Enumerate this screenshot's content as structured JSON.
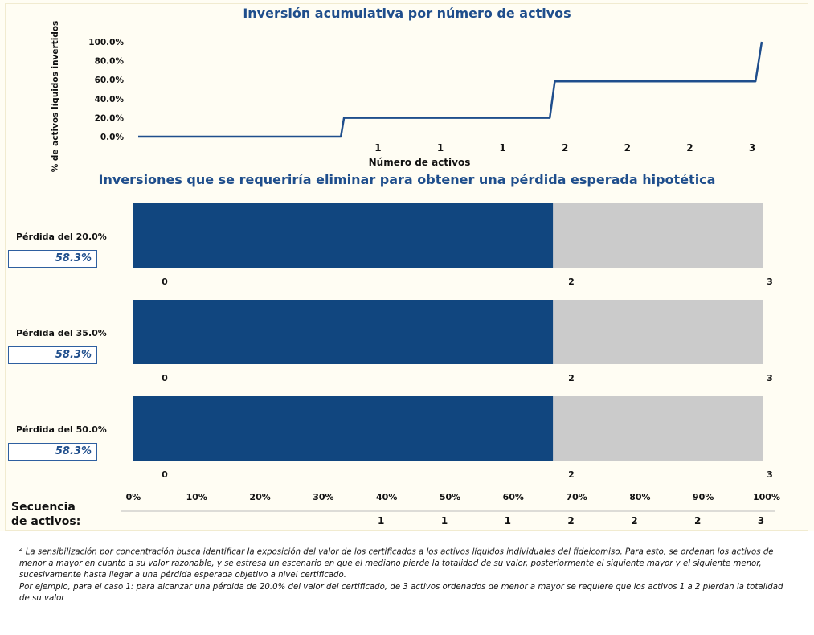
{
  "chart_data": [
    {
      "type": "line",
      "title": "Inversión acumulativa por número de activos",
      "xlabel": "Número de activos",
      "ylabel": "% de activos líquidos invertidos",
      "yticks": [
        "100.0%",
        "80.0%",
        "60.0%",
        "40.0%",
        "20.0%",
        "0.0%"
      ],
      "ylim": [
        0,
        100
      ],
      "xlim": [
        0,
        100
      ],
      "x_tick_labels": [
        "1",
        "1",
        "1",
        "2",
        "2",
        "2",
        "3"
      ],
      "x_tick_positions": [
        40,
        50,
        60,
        70,
        80,
        90,
        100
      ],
      "series": [
        {
          "x": [
            0,
            32.5,
            33,
            66,
            66.8,
            99,
            100
          ],
          "y": [
            0,
            0,
            19.8,
            19.8,
            58.3,
            58.3,
            100
          ]
        }
      ],
      "grid": false
    },
    {
      "type": "bar",
      "orientation": "horizontal",
      "stacked": true,
      "title": "Inversiones que se requeriría eliminar para obtener una pérdida esperada hipotética",
      "categories": [
        "Pérdida del 20.0%",
        "Pérdida del 35.0%",
        "Pérdida del 50.0%"
      ],
      "values": [
        58.3,
        58.3,
        58.3
      ],
      "value_labels": [
        "58.3%",
        "58.3%",
        "58.3%"
      ],
      "bar_split": 66.7,
      "bar_ticks": [
        {
          "label": "0",
          "at": 0
        },
        {
          "label": "2",
          "at": 66.7
        },
        {
          "label": "3",
          "at": 100
        }
      ],
      "xticks": [
        "0%",
        "10%",
        "20%",
        "30%",
        "40%",
        "50%",
        "60%",
        "70%",
        "80%",
        "90%",
        "100%"
      ],
      "xlim": [
        0,
        100
      ],
      "colors": {
        "filled": "#11467f",
        "remaining": "#cbcbcb"
      }
    }
  ],
  "sequence": {
    "label_line1": "Secuencia",
    "label_line2": "de activos:",
    "labels": [
      "1",
      "1",
      "1",
      "2",
      "2",
      "2",
      "3"
    ],
    "positions": [
      40,
      50,
      60,
      70,
      80,
      90,
      100
    ]
  },
  "footnote": {
    "marker": "2",
    "line1": "La sensibilización por concentración busca identificar la exposición del valor de los certificados a los activos líquidos individuales del fideicomiso. Para esto, se ordenan los activos de menor a mayor en cuanto a su valor razonable, y se estresa un escenario en que el mediano pierde la totalidad de su valor, posteriormente el siguiente mayor y el siguiente menor, sucesivamente hasta llegar a una pérdida esperada objetivo a nivel certificado.",
    "line2": "Por ejemplo, para el caso 1: para alcanzar una pérdida de 20.0% del valor del certificado, de 3 activos ordenados de menor a mayor se requiere que los activos 1 a 2 pierdan la totalidad de su valor"
  }
}
